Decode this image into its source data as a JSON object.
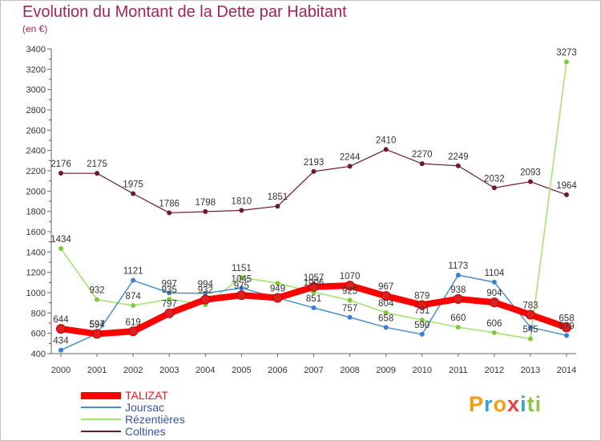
{
  "header": {
    "title": "Evolution du Montant de la Dette par Habitant",
    "subtitle": "(en €)"
  },
  "logo": {
    "letters": [
      "P",
      "r",
      "o",
      "x",
      "i",
      "t",
      "i"
    ]
  },
  "chart_data": {
    "type": "line",
    "title": "Evolution du Montant de la Dette par Habitant",
    "subtitle": "(en €)",
    "xlabel": "",
    "ylabel": "",
    "ylim": [
      400,
      3400
    ],
    "y_ticks": [
      400,
      600,
      800,
      1000,
      1200,
      1400,
      1600,
      1800,
      2000,
      2200,
      2400,
      2600,
      2800,
      3000,
      3200,
      3400
    ],
    "grid": false,
    "legend_position": "bottom-left",
    "categories": [
      "2000",
      "2001",
      "2002",
      "2003",
      "2004",
      "2005",
      "2006",
      "2007",
      "2008",
      "2009",
      "2010",
      "2011",
      "2012",
      "2013",
      "2014"
    ],
    "series": [
      {
        "name": "Coltines",
        "color": "#6b1a2a",
        "marker": "#6b1a2a",
        "width": 1.2,
        "values": [
          2176,
          2175,
          1975,
          1786,
          1798,
          1810,
          1851,
          2193,
          2244,
          2410,
          2270,
          2249,
          2032,
          2093,
          1964
        ],
        "labels": [
          "2176",
          "2175",
          "1975",
          "1786",
          "1798",
          "1810",
          "1851",
          "2193",
          "2244",
          "2410",
          "2270",
          "2249",
          "2032",
          "2093",
          "1964"
        ]
      },
      {
        "name": "Rézentières",
        "color": "#9ee36a",
        "marker": "#7ccc3a",
        "width": 1.5,
        "values": [
          1434,
          932,
          874,
          935,
          882,
          1151,
          1093,
          1006,
          925,
          804,
          731,
          660,
          606,
          545,
          3273
        ],
        "labels": [
          "1434",
          "932",
          "874",
          "935",
          "",
          "1151",
          "",
          "1006",
          "925",
          "804",
          "731",
          "660",
          "606",
          "545",
          "3273"
        ]
      },
      {
        "name": "Joursac",
        "color": "#4a90c8",
        "marker": "#3a7ed6",
        "width": 1.5,
        "values": [
          434,
          597,
          1121,
          997,
          994,
          1045,
          949,
          851,
          757,
          658,
          590,
          1173,
          1104,
          660,
          579
        ],
        "labels": [
          "434",
          "597",
          "1121",
          "997",
          "994",
          "1045",
          "",
          "851",
          "757",
          "658",
          "590",
          "1173",
          "1104",
          "",
          "579"
        ]
      },
      {
        "name": "TALIZAT",
        "color": "#ff0000",
        "marker": "#e02020",
        "width": 8,
        "values": [
          644,
          594,
          619,
          797,
          932,
          975,
          949,
          1057,
          1070,
          967,
          879,
          938,
          904,
          783,
          658
        ],
        "labels": [
          "644",
          "594",
          "619",
          "797",
          "932",
          "975",
          "949",
          "1057",
          "1070",
          "967",
          "879",
          "938",
          "904",
          "783",
          "658"
        ]
      }
    ],
    "legend_order": [
      "TALIZAT",
      "Joursac",
      "Rézentières",
      "Coltines"
    ]
  }
}
